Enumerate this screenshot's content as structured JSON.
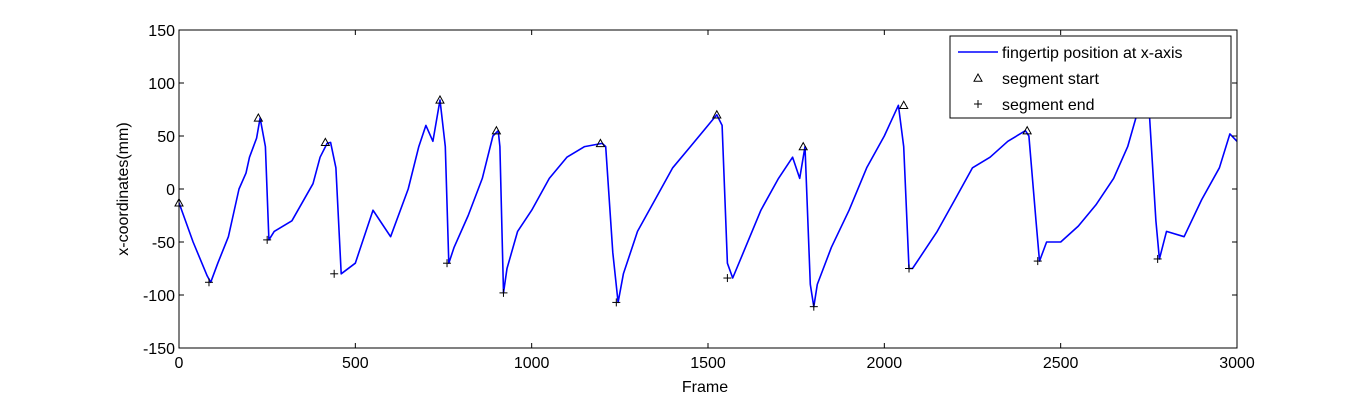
{
  "chart_data": {
    "type": "line",
    "title": "",
    "xlabel": "Frame",
    "ylabel": "x-coordinates(mm)",
    "xlim": [
      0,
      3000
    ],
    "ylim": [
      -150,
      150
    ],
    "grid": false,
    "legend_position": "top-right",
    "x_ticks": [
      0,
      500,
      1000,
      1500,
      2000,
      2500,
      3000
    ],
    "x_tick_labels": [
      "0",
      "500",
      "1000",
      "1500",
      "2000",
      "2500",
      "3000"
    ],
    "y_ticks": [
      150,
      100,
      50,
      0,
      -50,
      -100,
      -150
    ],
    "y_tick_labels": [
      "150",
      "100",
      "50",
      "0",
      "-50",
      "-100",
      "-150"
    ],
    "series": [
      {
        "name": "fingertip position at x-axis",
        "color": "#0000ff",
        "x": [
          0,
          40,
          80,
          90,
          110,
          140,
          170,
          190,
          200,
          220,
          230,
          245,
          255,
          270,
          320,
          380,
          400,
          420,
          430,
          445,
          460,
          500,
          550,
          600,
          650,
          680,
          700,
          720,
          740,
          755,
          765,
          780,
          820,
          860,
          890,
          905,
          910,
          920,
          930,
          960,
          1000,
          1050,
          1100,
          1150,
          1200,
          1210,
          1230,
          1245,
          1260,
          1300,
          1350,
          1400,
          1450,
          1500,
          1525,
          1540,
          1555,
          1570,
          1600,
          1650,
          1700,
          1740,
          1760,
          1775,
          1790,
          1800,
          1810,
          1850,
          1900,
          1950,
          2000,
          2040,
          2055,
          2070,
          2080,
          2100,
          2150,
          2200,
          2250,
          2300,
          2350,
          2400,
          2410,
          2430,
          2440,
          2460,
          2500,
          2550,
          2600,
          2650,
          2690,
          2720,
          2750,
          2770,
          2780,
          2800,
          2850,
          2900,
          2950,
          2980,
          3000
        ],
        "y": [
          -13,
          -50,
          -82,
          -88,
          -70,
          -45,
          0,
          15,
          30,
          48,
          67,
          40,
          -48,
          -40,
          -30,
          5,
          30,
          43,
          44,
          20,
          -80,
          -70,
          -20,
          -45,
          0,
          40,
          60,
          45,
          84,
          40,
          -70,
          -55,
          -25,
          10,
          50,
          55,
          40,
          -98,
          -75,
          -40,
          -20,
          10,
          30,
          40,
          43,
          40,
          -60,
          -107,
          -80,
          -40,
          -10,
          20,
          40,
          60,
          70,
          60,
          -70,
          -84,
          -60,
          -20,
          10,
          30,
          10,
          40,
          -90,
          -111,
          -90,
          -55,
          -20,
          20,
          50,
          79,
          40,
          -75,
          -75,
          -65,
          -40,
          -10,
          20,
          30,
          45,
          55,
          50,
          -30,
          -68,
          -50,
          -50,
          -35,
          -15,
          10,
          40,
          75,
          80,
          -30,
          -66,
          -40,
          -45,
          -10,
          20,
          52,
          45
        ]
      },
      {
        "name": "segment start",
        "color": "#000000",
        "marker": "triangle",
        "x": [
          0,
          225,
          415,
          740,
          900,
          1195,
          1525,
          1770,
          2055,
          2405
        ],
        "y": [
          -13,
          67,
          44,
          84,
          55,
          43,
          70,
          40,
          79,
          55
        ]
      },
      {
        "name": "segment end",
        "color": "#000000",
        "marker": "plus",
        "x": [
          85,
          250,
          440,
          760,
          920,
          1240,
          1555,
          1800,
          2070,
          2435,
          2775
        ],
        "y": [
          -88,
          -48,
          -80,
          -70,
          -98,
          -107,
          -84,
          -111,
          -75,
          -68,
          -66
        ]
      }
    ]
  }
}
